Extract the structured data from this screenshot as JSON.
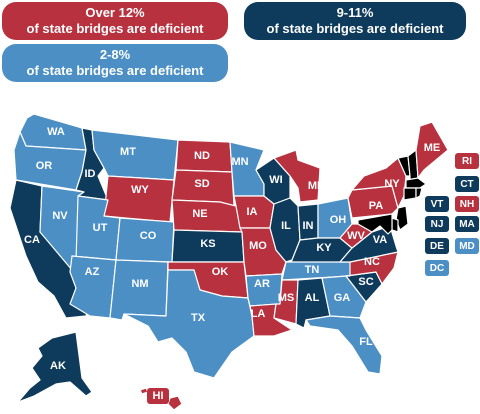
{
  "legend": {
    "over12": {
      "line1": "Over 12%",
      "line2": "of state bridges are deficient",
      "color": "#b8313f"
    },
    "nine_eleven": {
      "line1": "9-11%",
      "line2": "of state bridges are deficient",
      "color": "#0e3a5b"
    },
    "two_eight": {
      "line1": "2-8%",
      "line2": "of state bridges are deficient",
      "color": "#4b8fc4"
    }
  },
  "colors": {
    "red": "#b8313f",
    "dark": "#0e3a5b",
    "light": "#4b8fc4"
  },
  "states": {
    "WA": {
      "label": "WA",
      "category": "light"
    },
    "OR": {
      "label": "OR",
      "category": "light"
    },
    "CA": {
      "label": "CA",
      "category": "dark"
    },
    "ID": {
      "label": "ID",
      "category": "dark"
    },
    "NV": {
      "label": "NV",
      "category": "light"
    },
    "MT": {
      "label": "MT",
      "category": "light"
    },
    "WY": {
      "label": "WY",
      "category": "red"
    },
    "UT": {
      "label": "UT",
      "category": "light"
    },
    "AZ": {
      "label": "AZ",
      "category": "light"
    },
    "CO": {
      "label": "CO",
      "category": "light"
    },
    "NM": {
      "label": "NM",
      "category": "light"
    },
    "ND": {
      "label": "ND",
      "category": "red"
    },
    "SD": {
      "label": "SD",
      "category": "red"
    },
    "NE": {
      "label": "NE",
      "category": "red"
    },
    "KS": {
      "label": "KS",
      "category": "dark"
    },
    "OK": {
      "label": "OK",
      "category": "red"
    },
    "TX": {
      "label": "TX",
      "category": "light"
    },
    "MN": {
      "label": "MN",
      "category": "light"
    },
    "IA": {
      "label": "IA",
      "category": "red"
    },
    "MO": {
      "label": "MO",
      "category": "red"
    },
    "AR": {
      "label": "AR",
      "category": "light"
    },
    "LA": {
      "label": "LA",
      "category": "red"
    },
    "WI": {
      "label": "WI",
      "category": "dark"
    },
    "IL": {
      "label": "IL",
      "category": "dark"
    },
    "MI": {
      "label": "MI",
      "category": "red"
    },
    "IN": {
      "label": "IN",
      "category": "dark"
    },
    "OH": {
      "label": "OH",
      "category": "light"
    },
    "KY": {
      "label": "KY",
      "category": "dark"
    },
    "TN": {
      "label": "TN",
      "category": "light"
    },
    "MS": {
      "label": "MS",
      "category": "red"
    },
    "AL": {
      "label": "AL",
      "category": "dark"
    },
    "GA": {
      "label": "GA",
      "category": "light"
    },
    "FL": {
      "label": "FL",
      "category": "light"
    },
    "SC": {
      "label": "SC",
      "category": "dark"
    },
    "NC": {
      "label": "NC",
      "category": "red"
    },
    "VA": {
      "label": "VA",
      "category": "dark"
    },
    "WV": {
      "label": "WV",
      "category": "red"
    },
    "PA": {
      "label": "PA",
      "category": "red"
    },
    "NY": {
      "label": "NY",
      "category": "red"
    },
    "ME": {
      "label": "ME",
      "category": "red"
    },
    "AK": {
      "label": "AK",
      "category": "dark"
    },
    "HI": {
      "label": "HI",
      "category": "red"
    }
  },
  "northeast_boxes": [
    {
      "label": "RI",
      "category": "red"
    },
    {
      "label": "CT",
      "category": "dark"
    },
    {
      "label": "VT",
      "category": "dark"
    },
    {
      "label": "NH",
      "category": "red"
    },
    {
      "label": "NJ",
      "category": "dark"
    },
    {
      "label": "MA",
      "category": "dark"
    },
    {
      "label": "DE",
      "category": "dark"
    },
    {
      "label": "MD",
      "category": "light"
    },
    {
      "label": "DC",
      "category": "light"
    }
  ]
}
